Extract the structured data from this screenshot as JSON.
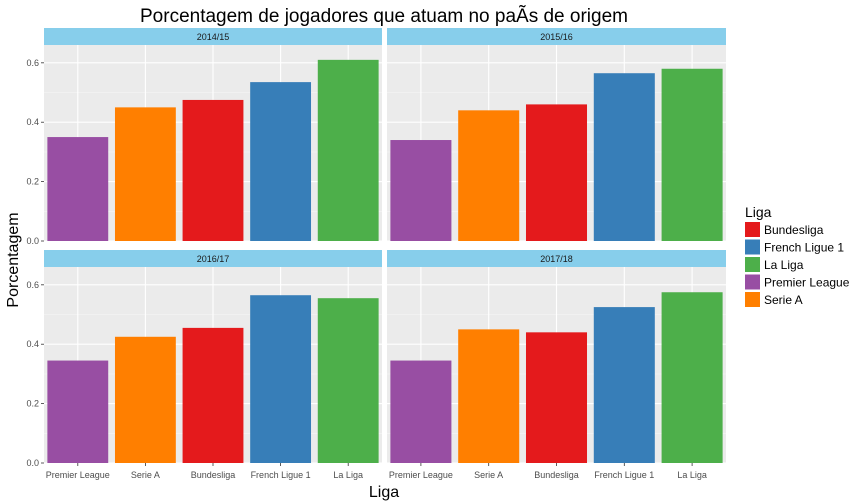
{
  "chart_data": {
    "type": "bar",
    "title": "Porcentagem de jogadores que atuam no paÃ­s de origem",
    "xlabel": "Liga",
    "ylabel": "Porcentagem",
    "ylim": [
      0,
      0.66
    ],
    "yticks": [
      "0.0",
      "0.2",
      "0.4",
      "0.6"
    ],
    "ytick_values": [
      0,
      0.2,
      0.4,
      0.6
    ],
    "grid": true,
    "legend_title": "Liga",
    "legend_position": "right",
    "legend_entries": [
      "Bundesliga",
      "French Ligue 1",
      "La Liga",
      "Premier League",
      "Serie A"
    ],
    "colors": {
      "Bundesliga": "#e41a1c",
      "French Ligue 1": "#377eb8",
      "La Liga": "#4daf4a",
      "Premier League": "#984ea3",
      "Serie A": "#ff7f00"
    },
    "strip_color": "#87ceeb",
    "panel_background": "#ebebeb",
    "categories": [
      "Premier League",
      "Serie A",
      "Bundesliga",
      "French Ligue 1",
      "La Liga"
    ],
    "facets": [
      {
        "label": "2014/15",
        "values": [
          0.35,
          0.45,
          0.475,
          0.535,
          0.61
        ]
      },
      {
        "label": "2015/16",
        "values": [
          0.34,
          0.44,
          0.46,
          0.565,
          0.58
        ]
      },
      {
        "label": "2016/17",
        "values": [
          0.345,
          0.425,
          0.455,
          0.565,
          0.555
        ]
      },
      {
        "label": "2017/18",
        "values": [
          0.345,
          0.45,
          0.44,
          0.525,
          0.575
        ]
      }
    ]
  }
}
